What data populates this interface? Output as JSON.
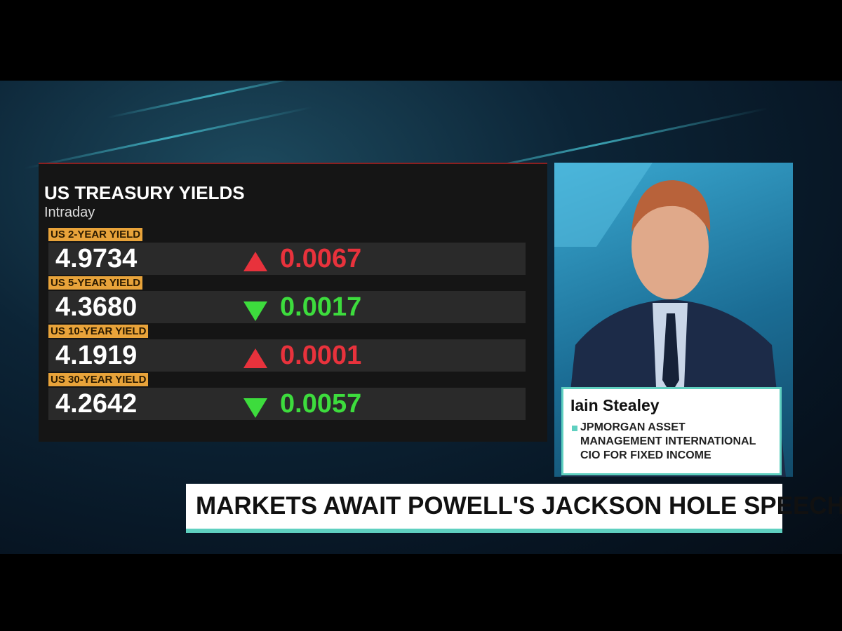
{
  "panel": {
    "title": "US TREASURY YIELDS",
    "subtitle": "Intraday",
    "rows": [
      {
        "label": "US 2-YEAR YIELD",
        "value": "4.9734",
        "change": "0.0067",
        "direction": "up"
      },
      {
        "label": "US 5-YEAR YIELD",
        "value": "4.3680",
        "change": "0.0017",
        "direction": "down"
      },
      {
        "label": "US 10-YEAR YIELD",
        "value": "4.1919",
        "change": "0.0001",
        "direction": "up"
      },
      {
        "label": "US 30-YEAR YIELD",
        "value": "4.2642",
        "change": "0.0057",
        "direction": "down"
      }
    ]
  },
  "guest": {
    "name": "Iain Stealey",
    "lines": [
      "JPMORGAN ASSET",
      "MANAGEMENT INTERNATIONAL",
      "CIO FOR FIXED INCOME"
    ]
  },
  "headline": "MARKETS AWAIT POWELL'S JACKSON HOLE SPEECH"
}
